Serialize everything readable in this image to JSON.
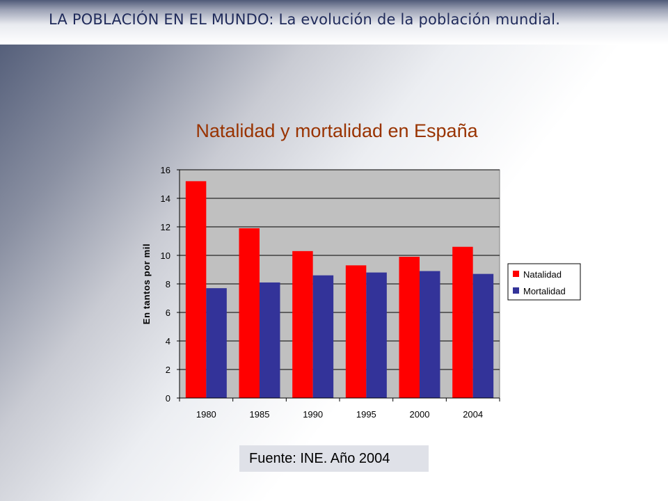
{
  "header": {
    "title_bold": "LA POBLACIÓN EN EL MUNDO:",
    "title_rest": " La evolución de la población mundial."
  },
  "chart_data": {
    "type": "bar",
    "title": "Natalidad y mortalidad en España",
    "xlabel": "",
    "ylabel": "En tantos por mil",
    "categories": [
      "1980",
      "1985",
      "1990",
      "1995",
      "2000",
      "2004"
    ],
    "series": [
      {
        "name": "Natalidad",
        "color": "#ff0000",
        "values": [
          15.2,
          11.9,
          10.3,
          9.3,
          9.9,
          10.6
        ]
      },
      {
        "name": "Mortalidad",
        "color": "#333399",
        "values": [
          7.7,
          8.1,
          8.6,
          8.8,
          8.9,
          8.7
        ]
      }
    ],
    "ylim": [
      0,
      16
    ],
    "yticks": [
      "0",
      "2",
      "4",
      "6",
      "8",
      "10",
      "12",
      "14",
      "16"
    ],
    "grid": true,
    "legend_position": "right",
    "plot_background": "#c0c0c0"
  },
  "source": {
    "text": "Fuente: INE. Año 2004"
  }
}
